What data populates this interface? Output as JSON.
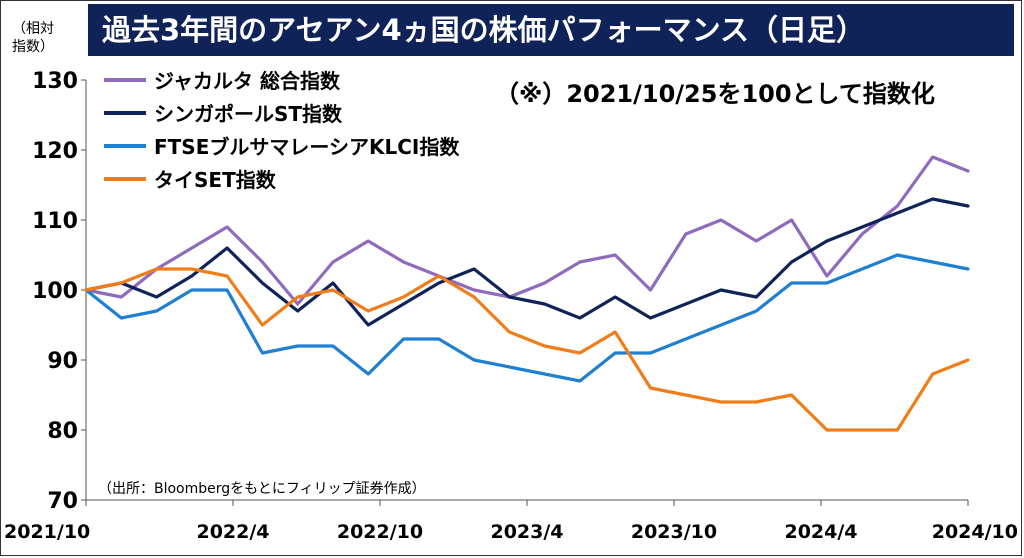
{
  "title": "過去3年間のアセアン4ヵ国の株価パフォーマンス（日足）",
  "y_unit": [
    "（相対",
    "指数）"
  ],
  "note": "（※）2021/10/25を100として指数化",
  "source": "（出所：Bloombergをもとにフィリップ証券作成）",
  "chart_data": {
    "type": "line",
    "ylim": [
      70,
      130
    ],
    "yticks": [
      70,
      80,
      90,
      100,
      110,
      120,
      130
    ],
    "xticks": [
      "2021/10",
      "2022/4",
      "2022/10",
      "2023/4",
      "2023/10",
      "2024/4",
      "2024/10"
    ],
    "x": [
      "2021/10",
      "2021/12",
      "2022/1",
      "2022/3",
      "2022/4",
      "2022/6",
      "2022/7",
      "2022/9",
      "2022/10",
      "2022/12",
      "2023/1",
      "2023/3",
      "2023/4",
      "2023/6",
      "2023/7",
      "2023/9",
      "2023/10",
      "2023/12",
      "2024/1",
      "2024/3",
      "2024/4",
      "2024/6",
      "2024/7",
      "2024/8",
      "2024/9",
      "2024/10"
    ],
    "series": [
      {
        "name": "ジャカルタ 総合指数",
        "color": "#8e6bbd",
        "values": [
          100,
          99,
          103,
          106,
          109,
          104,
          98,
          104,
          107,
          104,
          102,
          100,
          99,
          101,
          104,
          105,
          100,
          108,
          110,
          107,
          110,
          102,
          108,
          112,
          119,
          117
        ]
      },
      {
        "name": "シンガポールST指数",
        "color": "#0f2358",
        "values": [
          100,
          101,
          99,
          102,
          106,
          101,
          97,
          101,
          95,
          98,
          101,
          103,
          99,
          98,
          96,
          99,
          96,
          98,
          100,
          99,
          104,
          107,
          109,
          111,
          113,
          112
        ]
      },
      {
        "name": "FTSEブルサマレーシアKLCI指数",
        "color": "#1f7fd0",
        "values": [
          100,
          96,
          97,
          100,
          100,
          91,
          92,
          92,
          88,
          93,
          93,
          90,
          89,
          88,
          87,
          91,
          91,
          93,
          95,
          97,
          101,
          101,
          103,
          105,
          104,
          103
        ]
      },
      {
        "name": "タイSET指数",
        "color": "#f07d1a",
        "values": [
          100,
          101,
          103,
          103,
          102,
          95,
          99,
          100,
          97,
          99,
          102,
          99,
          94,
          92,
          91,
          94,
          86,
          85,
          84,
          84,
          85,
          80,
          80,
          80,
          88,
          90
        ]
      }
    ]
  }
}
